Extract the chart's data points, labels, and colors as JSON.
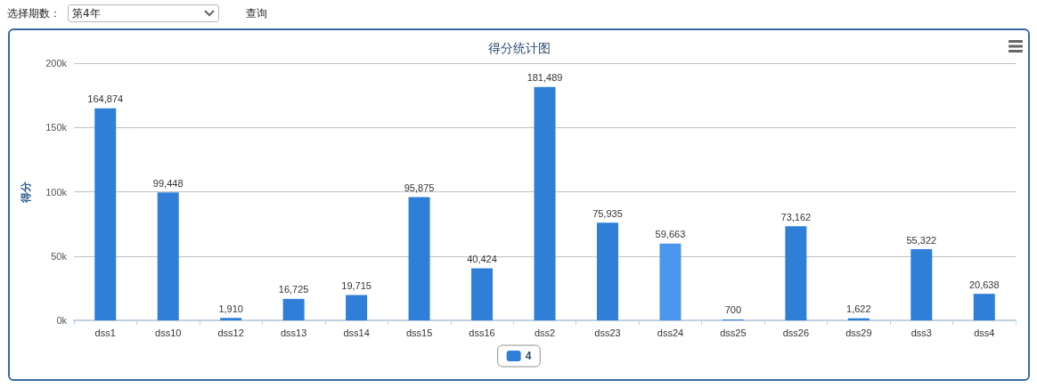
{
  "chart_data": {
    "type": "bar",
    "title": "得分统计图",
    "ylabel": "得分",
    "categories": [
      "dss1",
      "dss10",
      "dss12",
      "dss13",
      "dss14",
      "dss15",
      "dss16",
      "dss2",
      "dss23",
      "dss24",
      "dss25",
      "dss26",
      "dss29",
      "dss3",
      "dss4"
    ],
    "series": [
      {
        "name": "4",
        "color": "#2f7ed8",
        "colors": [
          "#2f7ed8",
          "#2f7ed8",
          "#2f7ed8",
          "#2f7ed8",
          "#2f7ed8",
          "#2f7ed8",
          "#2f7ed8",
          "#2f7ed8",
          "#2f7ed8",
          "#4a96ec",
          "#2f7ed8",
          "#2f7ed8",
          "#2f7ed8",
          "#2f7ed8",
          "#2f7ed8"
        ],
        "values": [
          164874,
          99448,
          1910,
          16725,
          19715,
          95875,
          40424,
          181489,
          75935,
          59663,
          700,
          73162,
          1622,
          55322,
          20638
        ],
        "value_labels": [
          "164,874",
          "99,448",
          "1,910",
          "16,725",
          "19,715",
          "95,875",
          "40,424",
          "181,489",
          "75,935",
          "59,663",
          "700",
          "73,162",
          "1,622",
          "55,322",
          "20,638"
        ]
      }
    ],
    "ylim": [
      0,
      200000
    ],
    "yticks": [
      {
        "value": 0,
        "label": "0k"
      },
      {
        "value": 50000,
        "label": "50k"
      },
      {
        "value": 100000,
        "label": "100k"
      },
      {
        "value": 150000,
        "label": "150k"
      },
      {
        "value": 200000,
        "label": "200k"
      }
    ],
    "grid": "y",
    "legend": "bottom",
    "annotations": [
      "选择期数：",
      "第4年",
      "查询"
    ]
  }
}
